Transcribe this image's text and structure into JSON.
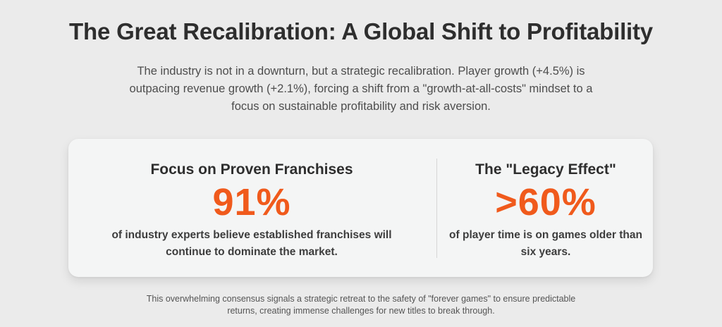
{
  "header": {
    "title": "The Great Recalibration: A Global Shift to Profitability",
    "intro": "The industry is not in a downturn, but a strategic recalibration. Player growth (+4.5%) is outpacing revenue growth (+2.1%), forcing a shift from a \"growth-at-all-costs\" mindset to a focus on sustainable profitability and risk aversion."
  },
  "stats": [
    {
      "heading": "Focus on Proven Franchises",
      "value": "91%",
      "caption": "of industry experts believe established franchises will continue to dominate the market."
    },
    {
      "heading": "The \"Legacy Effect\"",
      "value": ">60%",
      "caption": "of player time is on games older than six years."
    }
  ],
  "footer": {
    "note": "This overwhelming consensus signals a strategic retreat to the safety of \"forever games\" to ensure predictable returns, creating immense challenges for new titles to break through."
  },
  "colors": {
    "accent": "#f05a1c",
    "background": "#ebebeb",
    "card": "#f4f5f5"
  }
}
